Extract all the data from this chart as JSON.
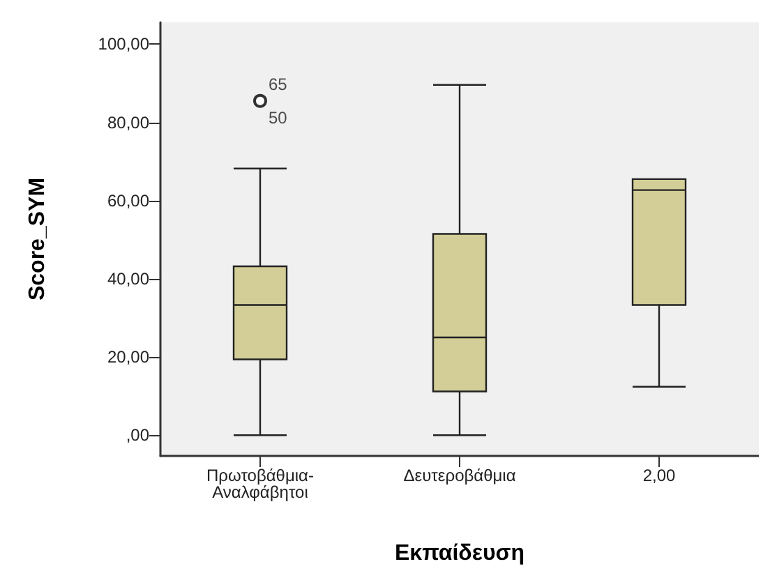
{
  "chart_data": {
    "type": "box",
    "xlabel": "Εκπαίδευση",
    "ylabel": "Score_SYM",
    "categories": [
      "Πρωτοβάθμια-Αναλφάβητοι",
      "Δευτεροβάθμια",
      "2,00"
    ],
    "color": "#d3ce97",
    "boxes": [
      {
        "low": 0,
        "q1": 19.4,
        "median": 33.3,
        "q3": 43.2,
        "high": 68.2,
        "outliers": [
          85.5
        ]
      },
      {
        "low": 0,
        "q1": 11.2,
        "median": 25,
        "q3": 51.5,
        "high": 89.6
      },
      {
        "low": 12.4,
        "q1": 33.3,
        "median": 62.7,
        "q3": 65.5,
        "high": 65.5
      }
    ],
    "ylim": [
      -5.3,
      105.6
    ],
    "yticks": [
      {
        "value": 0,
        "label": ",00"
      },
      {
        "value": 20,
        "label": "20,00"
      },
      {
        "value": 40,
        "label": "40,00"
      },
      {
        "value": 60,
        "label": "60,00"
      },
      {
        "value": 80,
        "label": "80,00"
      },
      {
        "value": 100,
        "label": "100,00"
      }
    ],
    "grid": false,
    "annotations": [
      "65",
      "50"
    ]
  }
}
